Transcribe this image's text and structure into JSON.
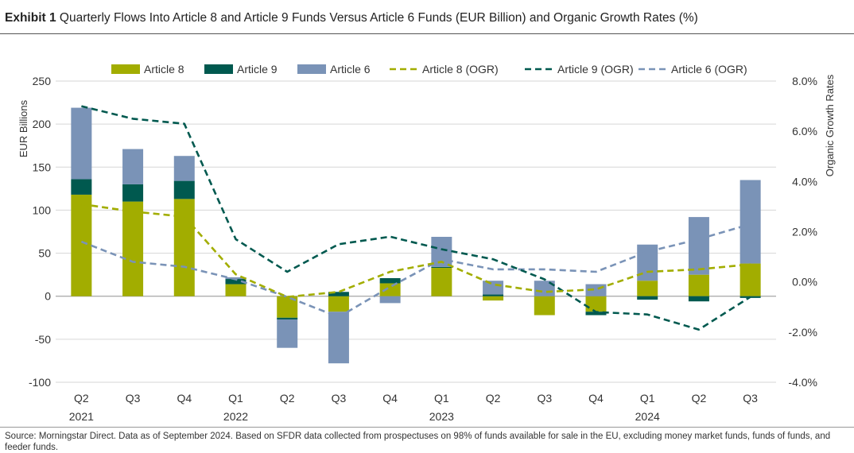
{
  "header": {
    "exhibit": "Exhibit 1",
    "title": "Quarterly Flows Into Article 8 and Article 9 Funds Versus Article 6 Funds (EUR Billion) and Organic Growth Rates (%)"
  },
  "footer": {
    "source": "Source: Morningstar Direct. Data as of September 2024. Based on SFDR data collected from prospectuses on 98% of funds available for sale in the EU, excluding money market funds, funds of funds, and feeder funds."
  },
  "colors": {
    "article8": "#a2ad00",
    "article9": "#00594f",
    "article6": "#7a93b7",
    "grid": "#d6d6d6",
    "axis_text": "#333333"
  },
  "chart_data": {
    "type": "bar",
    "stacked": true,
    "ylabel": "EUR Billions",
    "y2label": "Organic Growth Rates",
    "ylim": [
      -100,
      250
    ],
    "yticks": [
      -100,
      -50,
      0,
      50,
      100,
      150,
      200,
      250
    ],
    "y2lim": [
      -4,
      8
    ],
    "y2ticks": [
      "-4.0%",
      "-2.0%",
      "0.0%",
      "2.0%",
      "4.0%",
      "6.0%",
      "8.0%"
    ],
    "y2tick_values": [
      -4,
      -2,
      0,
      2,
      4,
      6,
      8
    ],
    "grid": true,
    "legend_position": "top",
    "categories": [
      "Q2",
      "Q3",
      "Q4",
      "Q1",
      "Q2",
      "Q3",
      "Q4",
      "Q1",
      "Q2",
      "Q3",
      "Q4",
      "Q1",
      "Q2",
      "Q3"
    ],
    "year_labels": [
      {
        "index": 0,
        "label": "2021"
      },
      {
        "index": 3,
        "label": "2022"
      },
      {
        "index": 7,
        "label": "2023"
      },
      {
        "index": 11,
        "label": "2024"
      }
    ],
    "bar_series": [
      {
        "name": "Article 8",
        "values": [
          118,
          110,
          113,
          14,
          -25,
          -18,
          15,
          33,
          -5,
          -22,
          -18,
          18,
          25,
          38
        ]
      },
      {
        "name": "Article 9",
        "values": [
          18,
          20,
          21,
          6,
          -2,
          5,
          6,
          1,
          2,
          0,
          -4,
          -4,
          -6,
          -2
        ]
      },
      {
        "name": "Article 6",
        "values": [
          83,
          41,
          29,
          2,
          -33,
          -60,
          -8,
          35,
          16,
          18,
          14,
          42,
          67,
          97
        ]
      }
    ],
    "line_series": [
      {
        "name": "Article 8 (OGR)",
        "axis": "right",
        "values": [
          3.1,
          2.8,
          2.6,
          0.3,
          -0.6,
          -0.4,
          0.4,
          0.8,
          -0.1,
          -0.4,
          -0.3,
          0.4,
          0.5,
          0.7
        ]
      },
      {
        "name": "Article 9 (OGR)",
        "axis": "right",
        "values": [
          7.0,
          6.5,
          6.3,
          1.7,
          0.4,
          1.5,
          1.8,
          1.3,
          0.9,
          0.1,
          -1.2,
          -1.3,
          -1.9,
          -0.6
        ]
      },
      {
        "name": "Article 6 (OGR)",
        "axis": "right",
        "values": [
          1.6,
          0.8,
          0.6,
          0.1,
          -0.6,
          -1.4,
          -0.2,
          0.9,
          0.5,
          0.5,
          0.4,
          1.2,
          1.7,
          2.3
        ]
      }
    ]
  }
}
